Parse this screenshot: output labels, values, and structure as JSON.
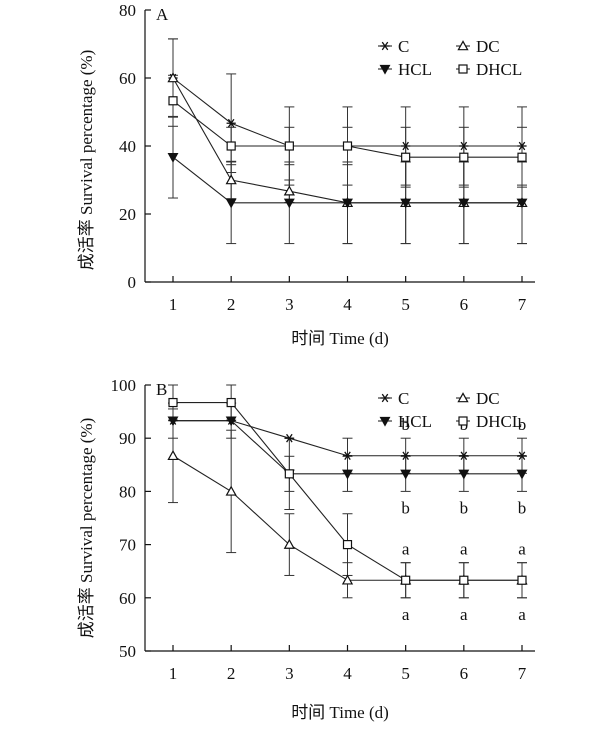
{
  "chart_data": [
    {
      "type": "line",
      "panel_label": "A",
      "xlabel": "时间 Time (d)",
      "ylabel": "成活率 Survival percentage (%)",
      "x": [
        1,
        2,
        3,
        4,
        5,
        6,
        7
      ],
      "xlim": [
        0.8,
        7.2
      ],
      "ylim": [
        0,
        80
      ],
      "yticks": [
        0,
        20,
        40,
        60,
        80
      ],
      "grid": false,
      "legend_position": "top-right",
      "series": [
        {
          "name": "C",
          "marker": "asterisk",
          "values": [
            60,
            46.7,
            40,
            40,
            40,
            40,
            40
          ],
          "error": [
            11.5,
            14.5,
            11.5,
            11.5,
            11.5,
            11.5,
            11.5
          ],
          "letters": [
            "",
            "",
            "",
            "",
            "",
            "",
            ""
          ]
        },
        {
          "name": "DC",
          "marker": "triangle-up-open",
          "values": [
            60,
            30,
            26.7,
            23.3,
            23.3,
            23.3,
            23.3
          ],
          "error": [
            11.5,
            5.5,
            3.3,
            12,
            12,
            12,
            12
          ],
          "letters": [
            "",
            "",
            "",
            "",
            "",
            "",
            ""
          ]
        },
        {
          "name": "HCL",
          "marker": "triangle-down-filled",
          "values": [
            36.7,
            23.3,
            23.3,
            23.3,
            23.3,
            23.3,
            23.3
          ],
          "error": [
            12,
            12,
            12,
            12,
            12,
            12,
            12
          ],
          "letters": [
            "",
            "",
            "",
            "",
            "",
            "",
            ""
          ]
        },
        {
          "name": "DHCL",
          "marker": "square-open",
          "values": [
            53.3,
            40,
            40,
            40,
            36.7,
            36.7,
            36.7
          ],
          "error": [
            7.5,
            5.5,
            5.5,
            5.5,
            8.8,
            8.8,
            8.8
          ],
          "letters": [
            "",
            "",
            "",
            "",
            "",
            "",
            ""
          ]
        }
      ]
    },
    {
      "type": "line",
      "panel_label": "B",
      "xlabel": "时间 Time (d)",
      "ylabel": "成活率 Survival percentage (%)",
      "x": [
        1,
        2,
        3,
        4,
        5,
        6,
        7
      ],
      "xlim": [
        0.8,
        7.2
      ],
      "ylim": [
        50,
        100
      ],
      "yticks": [
        50,
        60,
        70,
        80,
        90,
        100
      ],
      "grid": false,
      "legend_position": "top-right",
      "series": [
        {
          "name": "C",
          "marker": "asterisk",
          "values": [
            93.3,
            93.3,
            90,
            86.7,
            86.7,
            86.7,
            86.7
          ],
          "error": [
            0,
            0,
            0,
            3.3,
            3.3,
            3.3,
            3.3
          ],
          "letters": [
            "",
            "",
            "",
            "",
            "b",
            "b",
            "b"
          ]
        },
        {
          "name": "DC",
          "marker": "triangle-up-open",
          "values": [
            86.7,
            80,
            70,
            63.3,
            63.3,
            63.3,
            63.3
          ],
          "error": [
            8.8,
            11.5,
            5.8,
            3.3,
            3.3,
            3.3,
            3.3
          ],
          "letters": [
            "",
            "",
            "",
            "",
            "a",
            "a",
            "a"
          ]
        },
        {
          "name": "HCL",
          "marker": "triangle-down-filled",
          "values": [
            93.3,
            93.3,
            83.3,
            83.3,
            83.3,
            83.3,
            83.3
          ],
          "error": [
            3.3,
            3.3,
            3.3,
            3.3,
            3.3,
            3.3,
            3.3
          ],
          "letters": [
            "",
            "",
            "",
            "",
            "b",
            "b",
            "b"
          ]
        },
        {
          "name": "DHCL",
          "marker": "square-open",
          "values": [
            96.7,
            96.7,
            83.3,
            70,
            63.3,
            63.3,
            63.3
          ],
          "error": [
            3.3,
            3.3,
            6.7,
            5.8,
            3.3,
            3.3,
            3.3
          ],
          "letters": [
            "",
            "",
            "",
            "",
            "a",
            "a",
            "a"
          ]
        }
      ]
    }
  ]
}
